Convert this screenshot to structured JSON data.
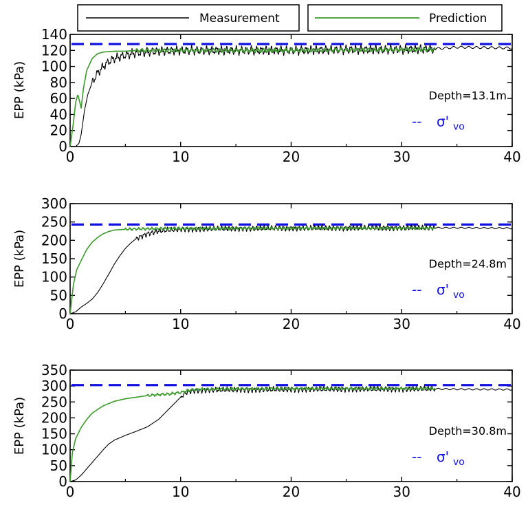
{
  "legend": {
    "measurement_label": "Measurement",
    "prediction_label": "Prediction"
  },
  "colors": {
    "measurement": "#000000",
    "prediction": "#3a9a2a",
    "effective_stress": "#1010e0"
  },
  "chart_data": [
    {
      "type": "line",
      "ylabel": "EPP (kPa)",
      "xlabel": "",
      "xlim": [
        0,
        40
      ],
      "ylim": [
        0,
        140
      ],
      "xticks": [
        "0",
        "10",
        "20",
        "30",
        "40"
      ],
      "yticks": [
        "0",
        "20",
        "40",
        "60",
        "80",
        "100",
        "120",
        "140"
      ],
      "annotation": "Depth=13.1m",
      "reference_label": "--",
      "reference_symbol": "σ'",
      "reference_subscript": "vo",
      "reference_value": 128,
      "series": [
        {
          "name": "Measurement",
          "x": [
            0,
            0.5,
            0.8,
            1,
            1.3,
            1.6,
            2,
            2.5,
            3,
            3.5,
            4,
            5,
            6,
            8,
            10,
            15,
            20,
            25,
            30,
            33,
            35,
            40
          ],
          "y": [
            0,
            0,
            4,
            15,
            45,
            65,
            80,
            92,
            100,
            106,
            110,
            114,
            117,
            119,
            120,
            120,
            120,
            121,
            121,
            122,
            124,
            123
          ],
          "osc_start": 2,
          "osc_end": 33,
          "osc_amp": 9,
          "osc_period": 0.45
        },
        {
          "name": "Prediction",
          "x": [
            0,
            0.3,
            0.5,
            0.7,
            1,
            1.2,
            1.5,
            2,
            2.5,
            3,
            4,
            5,
            6,
            10,
            20,
            30,
            33
          ],
          "y": [
            0,
            30,
            55,
            65,
            48,
            72,
            95,
            110,
            116,
            118,
            119,
            119,
            120,
            120,
            120,
            121,
            121
          ],
          "osc_start": 6,
          "osc_end": 33,
          "osc_amp": 4,
          "osc_period": 0.5
        }
      ]
    },
    {
      "type": "line",
      "ylabel": "EPP (kPa)",
      "xlabel": "",
      "xlim": [
        0,
        40
      ],
      "ylim": [
        0,
        300
      ],
      "xticks": [
        "0",
        "10",
        "20",
        "30",
        "40"
      ],
      "yticks": [
        "0",
        "50",
        "100",
        "150",
        "200",
        "250",
        "300"
      ],
      "annotation": "Depth=24.8m",
      "reference_label": "--",
      "reference_symbol": "σ'",
      "reference_subscript": "vo",
      "reference_value": 243,
      "series": [
        {
          "name": "Measurement",
          "x": [
            0,
            0.5,
            1,
            1.5,
            2,
            2.5,
            3,
            3.5,
            4,
            4.5,
            5,
            5.5,
            6,
            7,
            8,
            9,
            10,
            15,
            20,
            30,
            33,
            35,
            40
          ],
          "y": [
            0,
            5,
            18,
            28,
            40,
            58,
            82,
            108,
            135,
            158,
            178,
            193,
            205,
            218,
            225,
            228,
            230,
            232,
            233,
            234,
            234,
            234,
            233
          ],
          "osc_start": 6,
          "osc_end": 33,
          "osc_amp": 12,
          "osc_period": 0.35
        },
        {
          "name": "Prediction",
          "x": [
            0,
            0.3,
            0.6,
            1,
            1.5,
            2,
            2.5,
            3,
            3.5,
            4,
            5,
            6,
            8,
            10,
            20,
            30,
            33
          ],
          "y": [
            0,
            80,
            120,
            145,
            175,
            195,
            208,
            218,
            224,
            228,
            230,
            231,
            232,
            232,
            233,
            233,
            233
          ],
          "osc_start": 5,
          "osc_end": 33,
          "osc_amp": 6,
          "osc_period": 0.4
        }
      ]
    },
    {
      "type": "line",
      "ylabel": "EPP (kPa)",
      "xlabel": "",
      "xlim": [
        0,
        40
      ],
      "ylim": [
        0,
        350
      ],
      "xticks": [
        "0",
        "10",
        "20",
        "30",
        "40"
      ],
      "yticks": [
        "0",
        "50",
        "100",
        "150",
        "200",
        "250",
        "300",
        "350"
      ],
      "annotation": "Depth=30.8m",
      "reference_label": "--",
      "reference_symbol": "σ'",
      "reference_subscript": "vo",
      "reference_value": 303,
      "series": [
        {
          "name": "Measurement",
          "x": [
            0,
            0.5,
            1,
            1.5,
            2,
            3,
            3.5,
            4,
            5,
            6,
            7,
            8,
            9,
            10,
            10.5,
            11,
            12,
            15,
            20,
            25,
            30,
            33,
            35,
            40
          ],
          "y": [
            0,
            5,
            20,
            40,
            60,
            100,
            118,
            130,
            145,
            158,
            172,
            195,
            230,
            265,
            280,
            285,
            287,
            288,
            289,
            290,
            290,
            291,
            290,
            289
          ],
          "osc_start": 10,
          "osc_end": 33,
          "osc_amp": 14,
          "osc_period": 0.35
        },
        {
          "name": "Prediction",
          "x": [
            0,
            0.2,
            0.5,
            1,
            1.5,
            2,
            3,
            4,
            5,
            6,
            7,
            8,
            9,
            10,
            11,
            12,
            15,
            20,
            30,
            33
          ],
          "y": [
            0,
            90,
            135,
            170,
            195,
            215,
            238,
            252,
            260,
            265,
            270,
            273,
            275,
            280,
            288,
            290,
            291,
            292,
            292,
            292
          ],
          "osc_start": 7,
          "osc_end": 33,
          "osc_amp": 7,
          "osc_period": 0.45
        }
      ]
    }
  ]
}
